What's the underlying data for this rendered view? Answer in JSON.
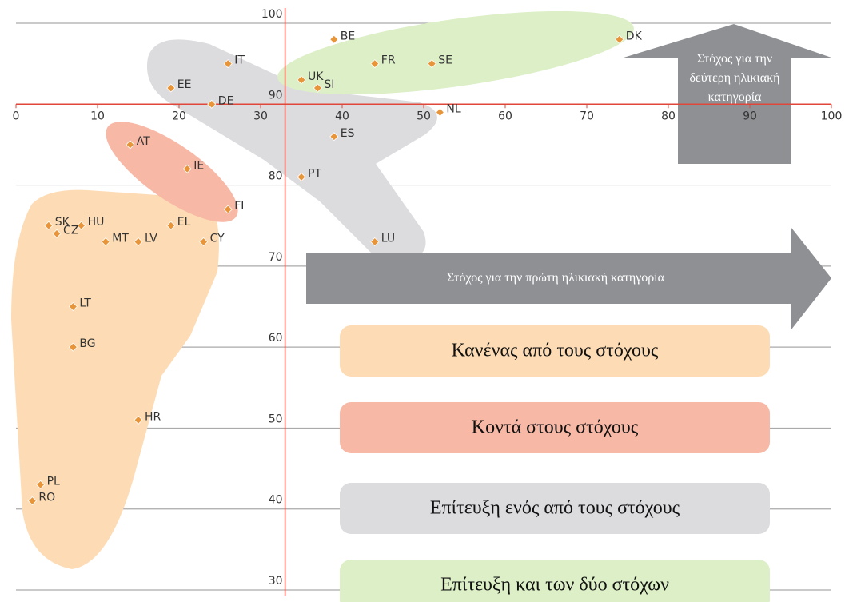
{
  "chart_data": {
    "type": "scatter",
    "labels": [
      "DK",
      "BE",
      "SE",
      "FR",
      "IT",
      "UK",
      "SI",
      "EE",
      "DE",
      "NL",
      "ES",
      "AT",
      "IE",
      "PT",
      "FI",
      "SK",
      "HU",
      "EL",
      "CZ",
      "MT",
      "LV",
      "CY",
      "LU",
      "LT",
      "BG",
      "HR",
      "PL",
      "RO"
    ],
    "x": [
      74,
      39,
      51,
      44,
      26,
      35,
      37,
      19,
      24,
      52,
      39,
      14,
      21,
      35,
      26,
      4,
      8,
      19,
      5,
      11,
      15,
      23,
      44,
      7,
      7,
      15,
      3,
      2
    ],
    "values": [
      98,
      98,
      95,
      95,
      95,
      93,
      92,
      92,
      90,
      89,
      86,
      85,
      82,
      81,
      77,
      75,
      75,
      75,
      74,
      73,
      73,
      73,
      73,
      65,
      60,
      51,
      43,
      41
    ],
    "color": "#e8953a",
    "xlim": [
      0,
      100
    ],
    "xticks": [
      0,
      10,
      20,
      30,
      40,
      50,
      60,
      70,
      80,
      90,
      100
    ],
    "ylim": [
      30,
      100
    ],
    "yticks": [
      30,
      40,
      50,
      60,
      70,
      80,
      90,
      100
    ],
    "x_axis_at": 90,
    "y_axis_at": 33,
    "grid": true,
    "annotations": [
      "Στόχος για την δεύτερη ηλικιακή κατηγορία",
      "Στόχος για την πρώτη ηλικιακή κατηγορία"
    ],
    "legend": [
      {
        "label": "Κανένας από τους στόχους",
        "color": "#fddcb5"
      },
      {
        "label": "Κοντά στους στόχους",
        "color": "#f7b8a6"
      },
      {
        "label": "Επίτευξη ενός από τους στόχους",
        "color": "#dcdcdf"
      },
      {
        "label": "Επίτευξη και των δύο στόχων",
        "color": "#dcefc6"
      }
    ]
  }
}
